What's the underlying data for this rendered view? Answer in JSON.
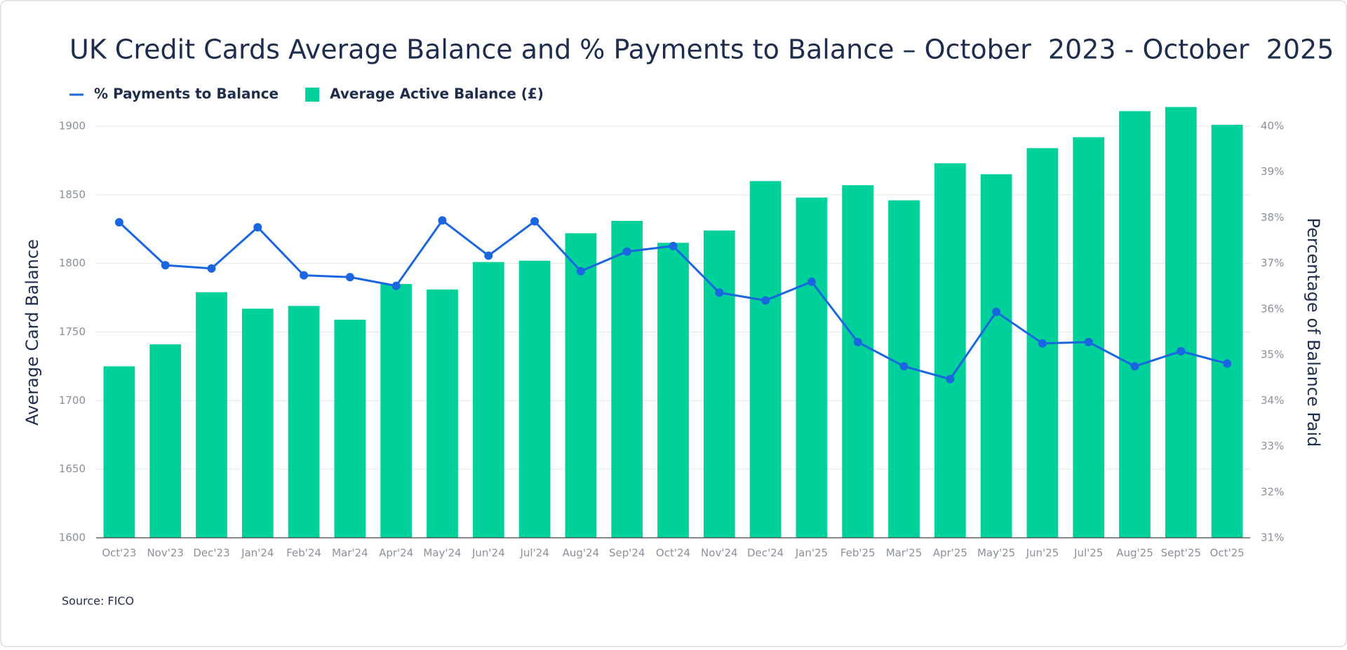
{
  "chart_data": {
    "type": "bar-line",
    "title": "UK Credit Cards Average Balance and % Payments to Balance – October  2023 - October  2025",
    "y_label": "Average Card Balance",
    "y2_label": "Percentage of Balance Paid",
    "source": "Source: FICO",
    "categories": [
      "Oct'23",
      "Nov'23",
      "Dec'23",
      "Jan'24",
      "Feb'24",
      "Mar'24",
      "Apr'24",
      "May'24",
      "Jun'24",
      "Jul'24",
      "Aug'24",
      "Sep'24",
      "Oct'24",
      "Nov'24",
      "Dec'24",
      "Jan'25",
      "Feb'25",
      "Mar'25",
      "Apr'25",
      "May'25",
      "Jun'25",
      "Jul'25",
      "Aug'25",
      "Sept'25",
      "Oct'25"
    ],
    "series": [
      {
        "name": "% Payments to Balance",
        "type": "line",
        "axis": "y2",
        "color": "#1a66e0",
        "values": [
          37.9,
          36.96,
          36.89,
          37.79,
          36.74,
          36.7,
          36.51,
          37.94,
          37.17,
          37.92,
          36.83,
          37.26,
          37.38,
          36.36,
          36.19,
          36.6,
          35.28,
          34.75,
          34.47,
          35.94,
          35.25,
          35.28,
          34.75,
          35.08,
          34.81
        ]
      },
      {
        "name": "Average Active Balance (£)",
        "type": "bar",
        "axis": "y",
        "color": "#00d19a",
        "values": [
          1725,
          1741,
          1779,
          1767,
          1769,
          1759,
          1785,
          1781,
          1801,
          1802,
          1822,
          1831,
          1815,
          1824,
          1860,
          1848,
          1857,
          1846,
          1873,
          1865,
          1884,
          1892,
          1911,
          1914,
          1901
        ]
      }
    ],
    "ylim": [
      1600,
      1900
    ],
    "yticks": [
      1600,
      1650,
      1700,
      1750,
      1800,
      1850,
      1900
    ],
    "y2lim": [
      31,
      40
    ],
    "y2ticks": [
      {
        "value": 31,
        "label": "31%"
      },
      {
        "value": 32,
        "label": "32%"
      },
      {
        "value": 33,
        "label": "33%"
      },
      {
        "value": 34,
        "label": "34%"
      },
      {
        "value": 35,
        "label": "35%"
      },
      {
        "value": 36,
        "label": "36%"
      },
      {
        "value": 37,
        "label": "37%"
      },
      {
        "value": 38,
        "label": "38%"
      },
      {
        "value": 39,
        "label": "39%"
      },
      {
        "value": 40,
        "label": "40%"
      }
    ],
    "grid": true
  }
}
